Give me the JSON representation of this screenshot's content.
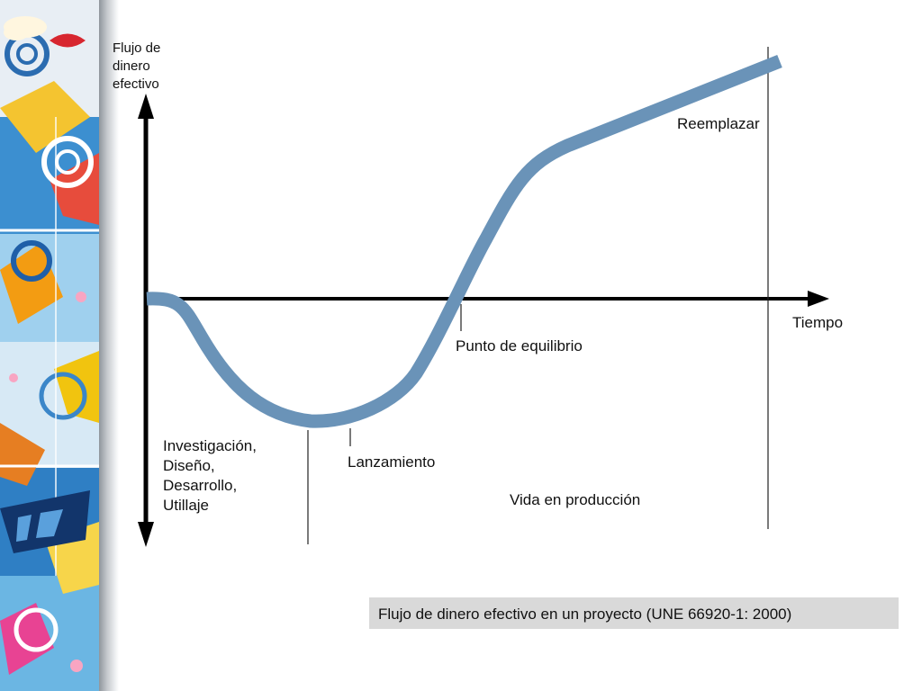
{
  "diagram": {
    "y_axis_label": [
      "Flujo de",
      "dinero",
      "efectivo"
    ],
    "x_axis_label": "Tiempo",
    "phase_labels": {
      "investigacion": [
        "Investigación,",
        "Diseño,",
        "Desarrollo,",
        "Utillaje"
      ],
      "lanzamiento": "Lanzamiento",
      "punto_equilibrio": "Punto de equilibrio",
      "vida_produccion": "Vida en producción",
      "reemplazar": "Reemplazar"
    }
  },
  "caption": "Flujo de dinero efectivo en un proyecto (UNE 66920-1: 2000)",
  "colors": {
    "curve": "#6a93b8",
    "axis": "#000000",
    "caption_background": "#d9d9d9"
  }
}
